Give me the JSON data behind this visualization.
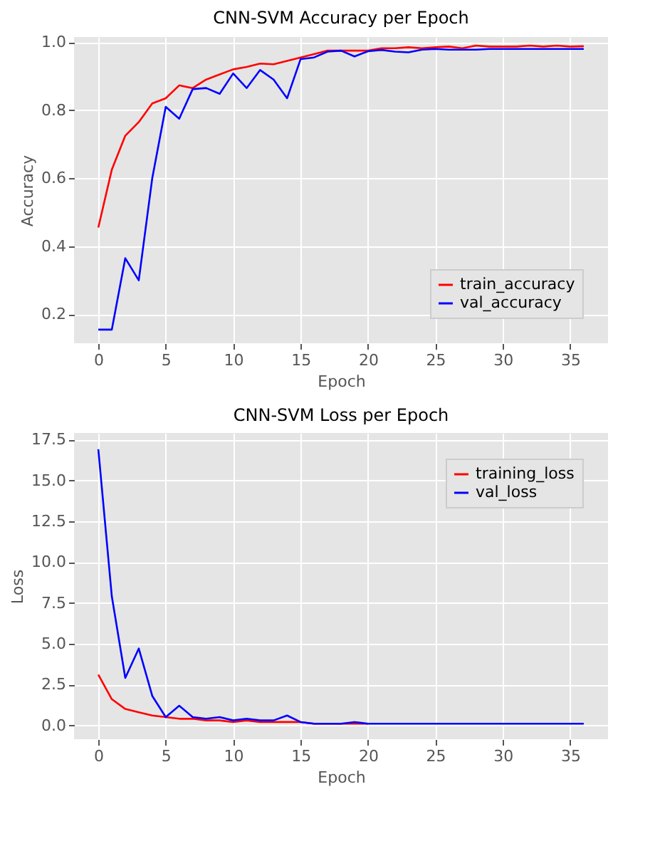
{
  "chart_data": [
    {
      "type": "line",
      "title": "CNN-SVM Accuracy per Epoch",
      "xlabel": "Epoch",
      "ylabel": "Accuracy",
      "x": [
        0,
        1,
        2,
        3,
        4,
        5,
        6,
        7,
        8,
        9,
        10,
        11,
        12,
        13,
        14,
        15,
        16,
        17,
        18,
        19,
        20,
        21,
        22,
        23,
        24,
        25,
        26,
        27,
        28,
        29,
        30,
        31,
        32,
        33,
        34,
        35,
        36
      ],
      "series": [
        {
          "name": "train_accuracy",
          "color": "#ff0000",
          "values": [
            0.455,
            0.625,
            0.725,
            0.765,
            0.82,
            0.835,
            0.873,
            0.865,
            0.89,
            0.905,
            0.92,
            0.927,
            0.937,
            0.935,
            0.945,
            0.955,
            0.965,
            0.975,
            0.975,
            0.975,
            0.975,
            0.982,
            0.982,
            0.985,
            0.982,
            0.985,
            0.987,
            0.982,
            0.99,
            0.987,
            0.987,
            0.987,
            0.99,
            0.987,
            0.99,
            0.987,
            0.988
          ]
        },
        {
          "name": "val_accuracy",
          "color": "#0000ff",
          "values": [
            0.155,
            0.155,
            0.365,
            0.3,
            0.6,
            0.81,
            0.775,
            0.862,
            0.865,
            0.848,
            0.908,
            0.865,
            0.918,
            0.89,
            0.835,
            0.95,
            0.955,
            0.972,
            0.975,
            0.958,
            0.973,
            0.977,
            0.972,
            0.97,
            0.978,
            0.98,
            0.978,
            0.978,
            0.978,
            0.98,
            0.98,
            0.98,
            0.98,
            0.98,
            0.98,
            0.98,
            0.98
          ]
        }
      ],
      "xlim": [
        -1.8,
        37.8
      ],
      "xticks": [
        0,
        5,
        10,
        15,
        20,
        25,
        30,
        35
      ],
      "ylim": [
        0.115,
        1.015
      ],
      "yticks": [
        0.2,
        0.4,
        0.6,
        0.8,
        {
          "value": 1,
          "label": "1.0"
        }
      ],
      "grid": true,
      "legend": "bottom right"
    },
    {
      "type": "line",
      "title": "CNN-SVM Loss per Epoch",
      "xlabel": "Epoch",
      "ylabel": "Loss",
      "x": [
        0,
        1,
        2,
        3,
        4,
        5,
        6,
        7,
        8,
        9,
        10,
        11,
        12,
        13,
        14,
        15,
        16,
        17,
        18,
        19,
        20,
        21,
        22,
        23,
        24,
        25,
        26,
        27,
        28,
        29,
        30,
        31,
        32,
        33,
        34,
        35,
        36
      ],
      "series": [
        {
          "name": "training_loss",
          "color": "#ff0000",
          "values": [
            3.1,
            1.6,
            1.0,
            0.8,
            0.6,
            0.5,
            0.4,
            0.4,
            0.3,
            0.3,
            0.2,
            0.3,
            0.2,
            0.2,
            0.2,
            0.2,
            0.1,
            0.1,
            0.1,
            0.1,
            0.1,
            null,
            null,
            null,
            null,
            null,
            null,
            null,
            null,
            null,
            null,
            null,
            null,
            null,
            null,
            null,
            null
          ]
        },
        {
          "name": "val_loss",
          "color": "#0000ff",
          "values": [
            16.9,
            7.9,
            2.9,
            4.7,
            1.8,
            0.5,
            1.2,
            0.5,
            0.4,
            0.5,
            0.3,
            0.4,
            0.3,
            0.3,
            0.6,
            0.2,
            0.1,
            0.1,
            0.1,
            0.2,
            0.1,
            0.1,
            0.1,
            0.1,
            0.1,
            0.1,
            0.1,
            0.1,
            0.1,
            0.1,
            0.1,
            0.1,
            0.1,
            0.1,
            0.1,
            0.1,
            0.1
          ]
        }
      ],
      "xlim": [
        -1.8,
        37.8
      ],
      "xticks": [
        0,
        5,
        10,
        15,
        20,
        25,
        30,
        35
      ],
      "ylim": [
        -0.85,
        17.9
      ],
      "yticks": [
        {
          "value": 0,
          "label": "0.0"
        },
        {
          "value": 2.5,
          "label": "2.5"
        },
        {
          "value": 5,
          "label": "5.0"
        },
        {
          "value": 7.5,
          "label": "7.5"
        },
        {
          "value": 10,
          "label": "10.0"
        },
        {
          "value": 12.5,
          "label": "12.5"
        },
        {
          "value": 15,
          "label": "15.0"
        },
        {
          "value": 17.5,
          "label": "17.5"
        }
      ],
      "grid": true,
      "legend": "top right"
    }
  ]
}
